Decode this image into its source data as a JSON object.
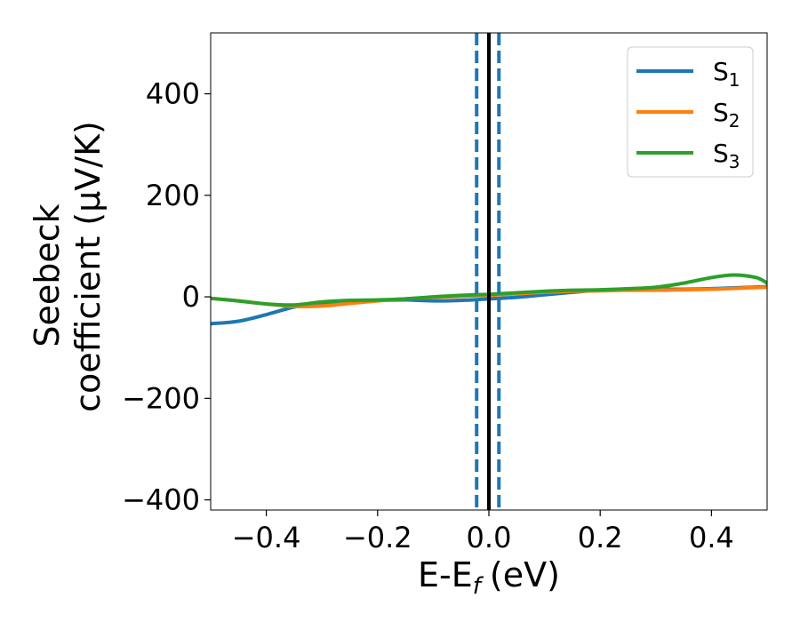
{
  "chart_data": {
    "type": "line",
    "xlabel": "E-E",
    "xlabel_sub": "f",
    "xlabel_unit": "(eV)",
    "ylabel_line1": "Seebeck",
    "ylabel_line2": "coefficient  (μV/K)",
    "xlim": [
      -0.5,
      0.5
    ],
    "ylim": [
      -420,
      520
    ],
    "x_ticks": [
      -0.4,
      -0.2,
      0.0,
      0.2,
      0.4
    ],
    "x_tick_labels": [
      "−0.4",
      "−0.2",
      "0.0",
      "0.2",
      "0.4"
    ],
    "y_ticks": [
      -400,
      -200,
      0,
      200,
      400
    ],
    "y_tick_labels": [
      "−400",
      "−200",
      "0",
      "200",
      "400"
    ],
    "grid": false,
    "legend_position": "top-right",
    "vertical_lines": [
      {
        "x": 0.0,
        "color": "#000000",
        "style": "solid"
      },
      {
        "x": -0.022,
        "color": "#1f77b4",
        "style": "dashed"
      },
      {
        "x": 0.018,
        "color": "#1f77b4",
        "style": "dashed"
      }
    ],
    "series": [
      {
        "name": "S",
        "name_sub": "1",
        "color": "#1f77b4",
        "x": [
          -0.5,
          -0.45,
          -0.4,
          -0.35,
          -0.3,
          -0.25,
          -0.2,
          -0.15,
          -0.1,
          -0.05,
          0.0,
          0.05,
          0.1,
          0.15,
          0.2,
          0.25,
          0.3,
          0.35,
          0.4,
          0.45,
          0.5
        ],
        "y": [
          -53,
          -48,
          -35,
          -20,
          -12,
          -9,
          -7,
          -6,
          -8,
          -7,
          -4,
          -1,
          4,
          9,
          13,
          14,
          15,
          15,
          16,
          18,
          20
        ]
      },
      {
        "name": "S",
        "name_sub": "2",
        "color": "#ff7f0e",
        "x": [
          -0.5,
          -0.45,
          -0.4,
          -0.35,
          -0.3,
          -0.25,
          -0.2,
          -0.15,
          -0.1,
          -0.05,
          0.0,
          0.05,
          0.1,
          0.15,
          0.2,
          0.25,
          0.3,
          0.35,
          0.4,
          0.45,
          0.5
        ],
        "y": [
          -3,
          -8,
          -14,
          -19,
          -18,
          -13,
          -8,
          -4,
          -1,
          1,
          3,
          6,
          9,
          11,
          12,
          13,
          13,
          14,
          15,
          17,
          19
        ]
      },
      {
        "name": "S",
        "name_sub": "3",
        "color": "#2ca02c",
        "x": [
          -0.5,
          -0.45,
          -0.4,
          -0.35,
          -0.3,
          -0.25,
          -0.2,
          -0.15,
          -0.1,
          -0.05,
          0.0,
          0.05,
          0.1,
          0.15,
          0.2,
          0.25,
          0.3,
          0.35,
          0.4,
          0.44,
          0.48,
          0.5
        ],
        "y": [
          -3,
          -8,
          -14,
          -16,
          -10,
          -7,
          -6,
          -4,
          0,
          3,
          5,
          8,
          11,
          13,
          14,
          16,
          19,
          27,
          38,
          43,
          38,
          27
        ]
      }
    ]
  }
}
